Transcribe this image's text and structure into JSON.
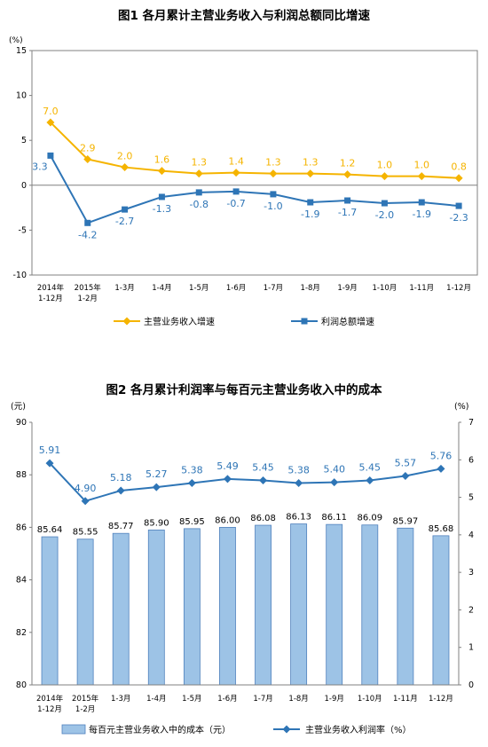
{
  "chart_data": [
    {
      "type": "line",
      "title": "图1  各月累计主营业务收入与利润总额同比增速",
      "unit_label": "(%)",
      "ylim": [
        -10,
        15
      ],
      "y_ticks": [
        "15",
        "10",
        "5",
        "0",
        "-5",
        "-10"
      ],
      "categories": [
        [
          "2014年",
          "1-12月"
        ],
        [
          "2015年",
          "1-2月"
        ],
        [
          "1-3月"
        ],
        [
          "1-4月"
        ],
        [
          "1-5月"
        ],
        [
          "1-6月"
        ],
        [
          "1-7月"
        ],
        [
          "1-8月"
        ],
        [
          "1-9月"
        ],
        [
          "1-10月"
        ],
        [
          "1-11月"
        ],
        [
          "1-12月"
        ]
      ],
      "series": [
        {
          "name": "主营业务收入增速",
          "color": "#F5B400",
          "marker": "diamond",
          "values": [
            7.0,
            2.9,
            2.0,
            1.6,
            1.3,
            1.4,
            1.3,
            1.3,
            1.2,
            1.0,
            1.0,
            0.8
          ],
          "labels": [
            "7.0",
            "2.9",
            "2.0",
            "1.6",
            "1.3",
            "1.4",
            "1.3",
            "1.3",
            "1.2",
            "1.0",
            "1.0",
            "0.8"
          ]
        },
        {
          "name": "利润总额增速",
          "color": "#2E75B6",
          "marker": "square",
          "values": [
            3.3,
            -4.2,
            -2.7,
            -1.3,
            -0.8,
            -0.7,
            -1.0,
            -1.9,
            -1.7,
            -2.0,
            -1.9,
            -2.3
          ],
          "labels": [
            "3.3",
            "-4.2",
            "-2.7",
            "-1.3",
            "-0.8",
            "-0.7",
            "-1.0",
            "-1.9",
            "-1.7",
            "-2.0",
            "-1.9",
            "-2.3"
          ]
        }
      ],
      "legend_position": "bottom",
      "grid": false
    },
    {
      "type": "bar",
      "title": "图2  各月累计利润率与每百元主营业务收入中的成本",
      "left_unit_label": "(元)",
      "right_unit_label": "(%)",
      "ylim": [
        80,
        90
      ],
      "y_ticks": [
        "90",
        "88",
        "86",
        "84",
        "82",
        "80"
      ],
      "y2lim": [
        0,
        7
      ],
      "y2_ticks": [
        "7",
        "6",
        "5",
        "4",
        "3",
        "2",
        "1",
        "0"
      ],
      "categories": [
        [
          "2014年",
          "1-12月"
        ],
        [
          "2015年",
          "1-2月"
        ],
        [
          "1-3月"
        ],
        [
          "1-4月"
        ],
        [
          "1-5月"
        ],
        [
          "1-6月"
        ],
        [
          "1-7月"
        ],
        [
          "1-8月"
        ],
        [
          "1-9月"
        ],
        [
          "1-10月"
        ],
        [
          "1-11月"
        ],
        [
          "1-12月"
        ]
      ],
      "series": [
        {
          "name": "每百元主营业务收入中的成本（元）",
          "type": "bar",
          "axis": "left",
          "color": "#9DC3E6",
          "stroke": "#4F81BD",
          "values": [
            85.64,
            85.55,
            85.77,
            85.9,
            85.95,
            86.0,
            86.08,
            86.13,
            86.11,
            86.09,
            85.97,
            85.68
          ],
          "labels": [
            "85.64",
            "85.55",
            "85.77",
            "85.90",
            "85.95",
            "86.00",
            "86.08",
            "86.13",
            "86.11",
            "86.09",
            "85.97",
            "85.68"
          ]
        },
        {
          "name": "主营业务收入利润率（%）",
          "type": "line",
          "axis": "right",
          "color": "#2E75B6",
          "marker": "diamond",
          "values": [
            5.91,
            4.9,
            5.18,
            5.27,
            5.38,
            5.49,
            5.45,
            5.38,
            5.4,
            5.45,
            5.57,
            5.76
          ],
          "labels": [
            "5.91",
            "4.90",
            "5.18",
            "5.27",
            "5.38",
            "5.49",
            "5.45",
            "5.38",
            "5.40",
            "5.45",
            "5.57",
            "5.76"
          ]
        }
      ],
      "legend_position": "bottom",
      "grid": false
    }
  ]
}
